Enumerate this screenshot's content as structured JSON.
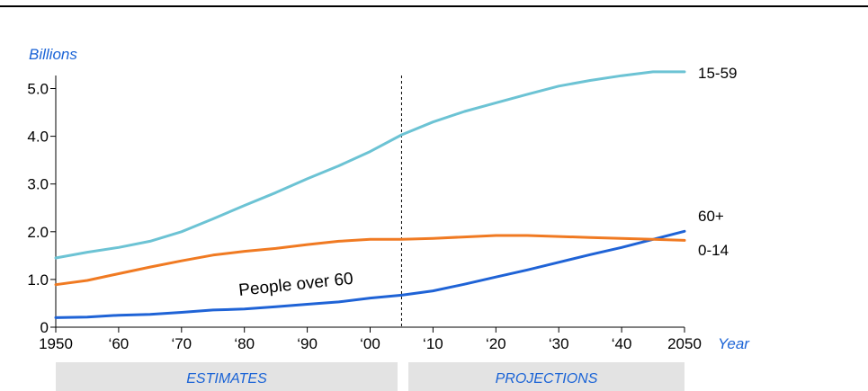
{
  "chart_data": {
    "type": "line",
    "ylabel": "Billions",
    "xlabel": "Year",
    "xlim": [
      1950,
      2050
    ],
    "ylim": [
      0,
      5.5
    ],
    "y_ticks": [
      0,
      1.0,
      2.0,
      3.0,
      4.0,
      5.0
    ],
    "y_tick_labels": [
      "0",
      "1.0",
      "2.0",
      "3.0",
      "4.0",
      "5.0"
    ],
    "x_ticks": [
      1950,
      1960,
      1970,
      1980,
      1990,
      2000,
      2010,
      2020,
      2030,
      2040,
      2050
    ],
    "x_tick_labels": [
      "1950",
      "‘60",
      "‘70",
      "‘80",
      "‘90",
      "‘00",
      "‘10",
      "‘20",
      "‘30",
      "‘40",
      "2050"
    ],
    "grid": false,
    "divider_year": 2005,
    "bands": [
      {
        "label": "ESTIMATES",
        "from": 1950,
        "to": 2005
      },
      {
        "label": "PROJECTIONS",
        "from": 2005,
        "to": 2050
      }
    ],
    "annotations": [
      {
        "text": "People over 60",
        "x": 1988,
        "y": 0.7
      }
    ],
    "x": [
      1950,
      1955,
      1960,
      1965,
      1970,
      1975,
      1980,
      1985,
      1990,
      1995,
      2000,
      2005,
      2010,
      2015,
      2020,
      2025,
      2030,
      2035,
      2040,
      2045,
      2050
    ],
    "series": [
      {
        "name": "15-59",
        "color": "#6cc3d4",
        "values": [
          1.45,
          1.57,
          1.67,
          1.8,
          2.0,
          2.27,
          2.55,
          2.82,
          3.11,
          3.38,
          3.68,
          4.03,
          4.3,
          4.52,
          4.7,
          4.88,
          5.05,
          5.17,
          5.27,
          5.35,
          5.35
        ]
      },
      {
        "name": "60+",
        "color": "#1f63d6",
        "values": [
          0.2,
          0.21,
          0.25,
          0.27,
          0.31,
          0.36,
          0.38,
          0.43,
          0.48,
          0.53,
          0.61,
          0.67,
          0.76,
          0.9,
          1.05,
          1.2,
          1.36,
          1.52,
          1.67,
          1.84,
          2.01
        ]
      },
      {
        "name": "0-14",
        "color": "#f07a22",
        "values": [
          0.89,
          0.98,
          1.12,
          1.26,
          1.39,
          1.51,
          1.59,
          1.65,
          1.73,
          1.8,
          1.84,
          1.84,
          1.86,
          1.89,
          1.92,
          1.92,
          1.9,
          1.88,
          1.86,
          1.84,
          1.82
        ]
      }
    ],
    "accent_color": "#1a63d6",
    "band_color": "#e3e3e3",
    "line_color": "#000000"
  }
}
